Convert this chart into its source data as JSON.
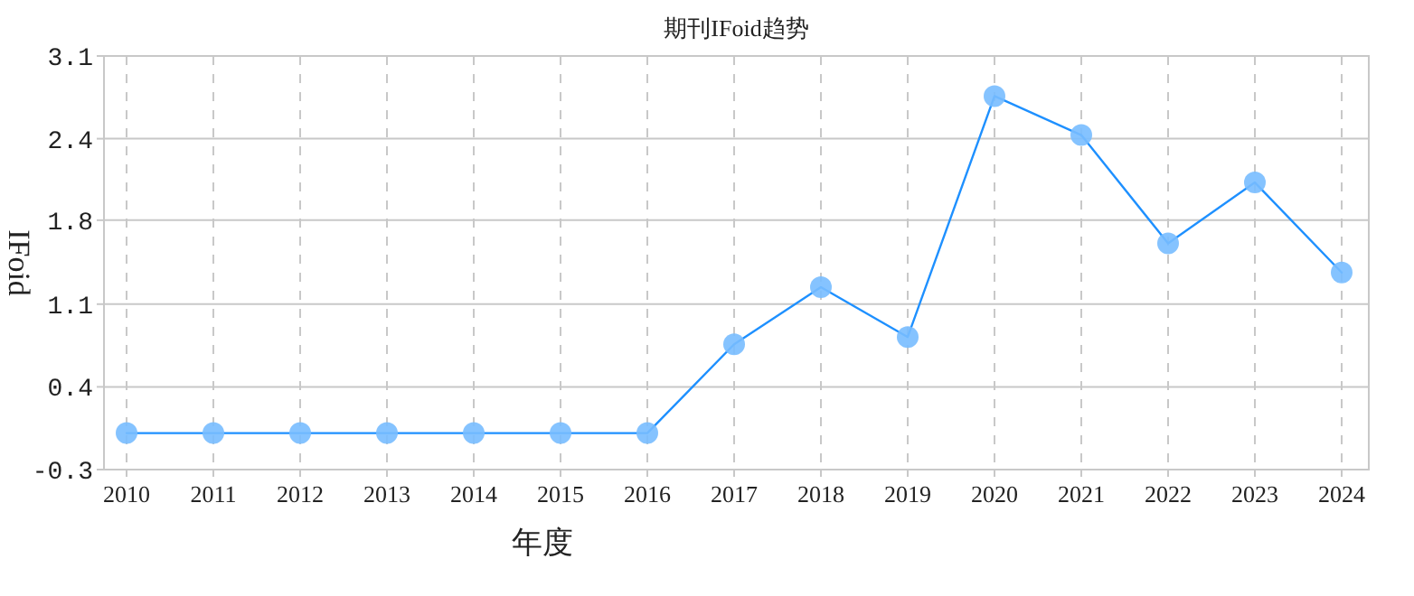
{
  "chart_data": {
    "type": "line",
    "title": "期刊IFoid趋势",
    "xlabel": "年度",
    "ylabel": "IFoid",
    "categories": [
      "2010",
      "2011",
      "2012",
      "2013",
      "2014",
      "2015",
      "2016",
      "2017",
      "2018",
      "2019",
      "2020",
      "2021",
      "2022",
      "2023",
      "2024"
    ],
    "series": [
      {
        "color": "#1e90ff",
        "values": [
          0,
          0,
          0,
          0,
          0,
          0,
          0,
          0.73,
          1.2,
          0.79,
          2.77,
          2.45,
          1.56,
          2.06,
          1.32
        ]
      }
    ],
    "ylim": [
      -0.3,
      3.1
    ],
    "yticks": [
      -0.3,
      {
        "value": 0.38,
        "label": "0.4"
      },
      {
        "value": 1.06,
        "label": "1.1"
      },
      {
        "value": 1.75,
        "label": "1.8"
      },
      {
        "value": 2.42,
        "label": "2.4"
      },
      3.1
    ],
    "grid": true,
    "marker": "circle",
    "line_style": "solid"
  }
}
